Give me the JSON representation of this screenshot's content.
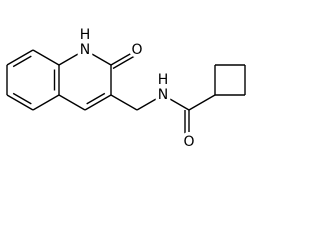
{
  "atom_labels": [
    "H",
    "N",
    "O",
    "H",
    "N",
    "O"
  ]
}
